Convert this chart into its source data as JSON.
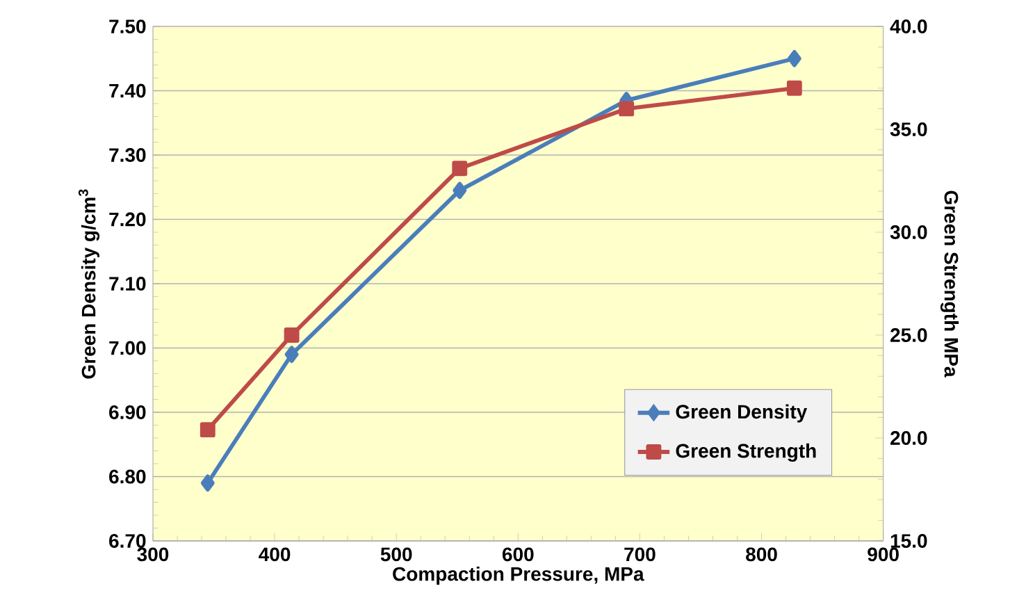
{
  "chart_data": {
    "type": "line",
    "xlabel": "Compaction Pressure, MPa",
    "ylabel": "Green Density g/cm$^{3}$",
    "y2label": "Green Strength MPa",
    "x": [
      345,
      414,
      552,
      689,
      827
    ],
    "series": [
      {
        "name": "Green Density",
        "color": "#4a7ebb",
        "marker": "diamond",
        "values": [
          6.79,
          6.99,
          7.245,
          7.385,
          7.45
        ]
      },
      {
        "name": "Green Strength",
        "color": "#be4b48",
        "marker": "square",
        "axis": "y2",
        "values": [
          20.4,
          25.0,
          33.1,
          36.0,
          37.0
        ]
      }
    ],
    "xlim": [
      300,
      900
    ],
    "xticks": [
      300,
      400,
      500,
      600,
      700,
      800,
      900
    ],
    "ylim": [
      6.7,
      7.5
    ],
    "yticks": [
      {
        "value": 6.7,
        "label": "6.70"
      },
      {
        "value": 6.8,
        "label": "6.80"
      },
      {
        "value": 6.9,
        "label": "6.90"
      },
      {
        "value": 7.0,
        "label": "7.00"
      },
      {
        "value": 7.1,
        "label": "7.10"
      },
      {
        "value": 7.2,
        "label": "7.20"
      },
      {
        "value": 7.3,
        "label": "7.30"
      },
      {
        "value": 7.4,
        "label": "7.40"
      },
      {
        "value": 7.5,
        "label": "7.50"
      }
    ],
    "y2lim": [
      15,
      40
    ],
    "y2ticks": [
      {
        "value": 15,
        "label": "15.0"
      },
      {
        "value": 20,
        "label": "20.0"
      },
      {
        "value": 25,
        "label": "25.0"
      },
      {
        "value": 30,
        "label": "30.0"
      },
      {
        "value": 35,
        "label": "35.0"
      },
      {
        "value": 40,
        "label": "40.0"
      }
    ],
    "grid": "y",
    "legend": "bottom right",
    "line_style": "solid"
  }
}
